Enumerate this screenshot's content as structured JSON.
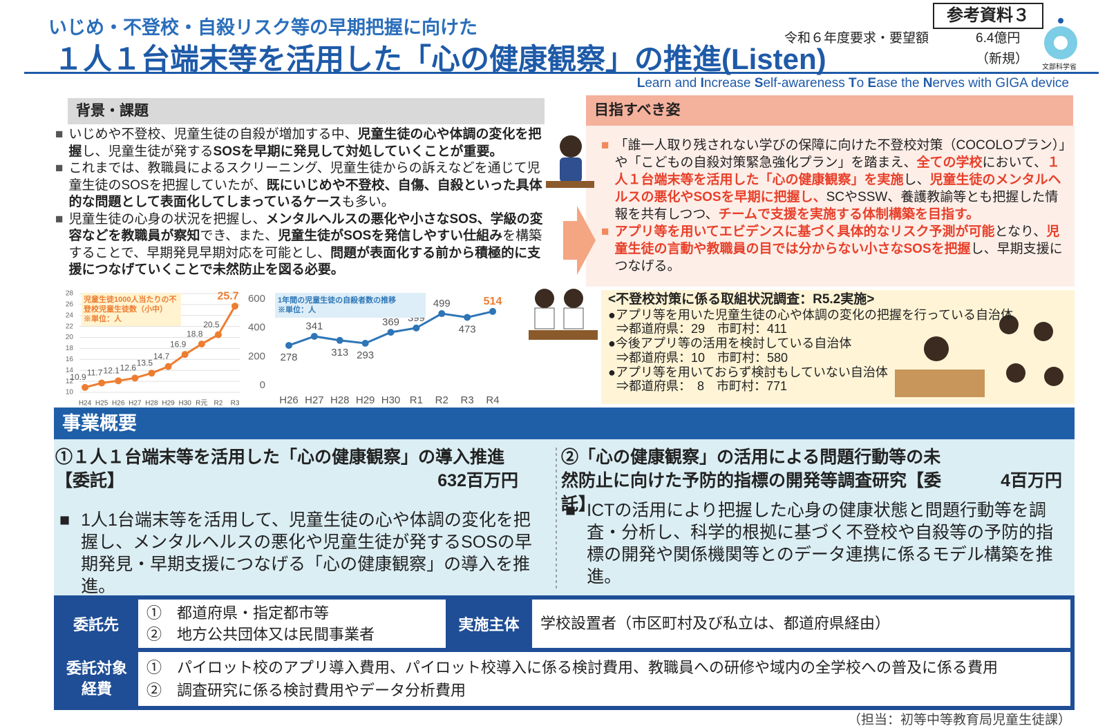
{
  "header": {
    "subtitle": "いじめ・不登校・自殺リスク等の早期把握に向けた",
    "title": "１人１台端末等を活用した「心の健康観察」の推進(Listen)",
    "doc_label": "参考資料３",
    "budget_label": "令和６年度要求・要望額",
    "budget_amount": "6.4億円",
    "budget_note": "（新規）",
    "ministry": "文部科学省",
    "acronym": [
      {
        "text": "L",
        "style": "bold"
      },
      {
        "text": "earn and "
      },
      {
        "text": "I",
        "style": "bold"
      },
      {
        "text": "ncrease "
      },
      {
        "text": "S",
        "style": "bold"
      },
      {
        "text": "elf-awareness "
      },
      {
        "text": "T",
        "style": "bold"
      },
      {
        "text": "o "
      },
      {
        "text": "E",
        "style": "bold"
      },
      {
        "text": "ase the "
      },
      {
        "text": "N",
        "style": "bold"
      },
      {
        "text": "erves with GIGA device"
      }
    ]
  },
  "background": {
    "heading": "背景・課題",
    "bullet_marker": "■",
    "bullets": [
      [
        {
          "text": "いじめや不登校、児童生徒の自殺が増加する中、"
        },
        {
          "text": "児童生徒の心や体調の変化を把握",
          "style": "bold"
        },
        {
          "text": "し、児童生徒が発する"
        },
        {
          "text": "SOSを早期に発見して対処していくことが重要。",
          "style": "bold"
        }
      ],
      [
        {
          "text": "これまでは、教職員によるスクリーニング、児童生徒からの訴えなどを通じて児童生徒のSOSを把握していたが、"
        },
        {
          "text": "既にいじめや不登校、自傷、自殺といった具体的な問題として表面化してしまっているケース",
          "style": "bold"
        },
        {
          "text": "も多い。"
        }
      ],
      [
        {
          "text": "児童生徒の心身の状況を把握し、"
        },
        {
          "text": "メンタルヘルスの悪化や小さなSOS、学級の変容などを教職員が察知",
          "style": "bold"
        },
        {
          "text": "でき、また、"
        },
        {
          "text": "児童生徒がSOSを発信しやすい仕組み",
          "style": "bold"
        },
        {
          "text": "を構築することで、早期発見早期対応を可能とし、"
        },
        {
          "text": "問題が表面化する前から積極的に支援につなげていくことで未然防止を図る必要。",
          "style": "bold"
        }
      ]
    ]
  },
  "chart_left": {
    "type": "line",
    "title": "児童生徒1000人当たりの不登校児童生徒数（小中）",
    "note": "※単位：人",
    "categories": [
      "H24",
      "H25",
      "H26",
      "H27",
      "H28",
      "H29",
      "H30",
      "R元",
      "R2",
      "R3"
    ],
    "values": [
      10.9,
      11.7,
      12.1,
      12.6,
      13.5,
      14.7,
      16.9,
      18.8,
      20.5,
      25.7
    ],
    "color": "#ed7d31",
    "ylim": [
      10,
      28
    ],
    "yticks": [
      10,
      12,
      14,
      16,
      18,
      20,
      22,
      24,
      26,
      28
    ],
    "grid": true
  },
  "chart_right": {
    "type": "line",
    "title": "1年間の児童生徒の自殺者数の推移",
    "note": "※単位：人",
    "categories": [
      "H26",
      "H27",
      "H28",
      "H29",
      "H30",
      "R1",
      "R2",
      "R3",
      "R4"
    ],
    "values": [
      278,
      341,
      313,
      293,
      369,
      399,
      499,
      473,
      514
    ],
    "color": "#2e75b6",
    "ylim": [
      0,
      600
    ],
    "yticks": [
      0,
      200,
      400,
      600
    ],
    "grid": false
  },
  "goal": {
    "heading": "目指すべき姿",
    "bullet_marker": "■",
    "bullets": [
      [
        {
          "text": "「誰一人取り残されない学びの保障に向けた不登校対策（COCOLOプラン）」や「こどもの自殺対策緊急強化プラン」を踏まえ、"
        },
        {
          "text": "全ての学校",
          "style": "red"
        },
        {
          "text": "において、"
        },
        {
          "text": "１人１台端末等を活用した「心の健康観察」を実施",
          "style": "red"
        },
        {
          "text": "し、"
        },
        {
          "text": "児童生徒のメンタルヘルスの悪化やSOSを早期に把握し、",
          "style": "red"
        },
        {
          "text": "SCやSSW、養護教諭等とも把握した情報を共有しつつ、"
        },
        {
          "text": "チームで支援を実施する体制構築を目指す。",
          "style": "red"
        }
      ],
      [
        {
          "text": "アプリ等を用いてエビデンスに基づく具体的なリスク予測が可能",
          "style": "red"
        },
        {
          "text": "となり、"
        },
        {
          "text": "児童生徒の言動や教職員の目では分からない小さなSOSを把握",
          "style": "red"
        },
        {
          "text": "し、早期支援につなげる。"
        }
      ]
    ],
    "survey": {
      "title": "<不登校対策に係る取組状況調査：R5.2実施>",
      "items": [
        {
          "label": "●アプリ等を用いた児童生徒の心や体調の変化の把握を行っている自治体",
          "detail": "⇒都道府県：29　市町村：411"
        },
        {
          "label": "●今後アプリ等の活用を検討している自治体",
          "detail": "⇒都道府県：10　市町村：580"
        },
        {
          "label": "●アプリ等を用いておらず検討もしていない自治体",
          "detail": "⇒都道府県：　8　市町村：771"
        }
      ]
    }
  },
  "overview": {
    "heading": "事業概要",
    "bullet_marker": "■",
    "items": [
      {
        "title": "①１人１台端末等を活用した「心の健康観察」の導入推進【委託】",
        "amount": "632百万円",
        "body": "1人1台端末等を活用して、児童生徒の心や体調の変化を把握し、メンタルヘルスの悪化や児童生徒が発するSOSの早期発見・早期支援につなげる「心の健康観察」の導入を推進。"
      },
      {
        "title": "②「心の健康観察」の活用による問題行動等の未然防止に向けた予防的指標の開発等調査研究【委託】",
        "amount": "4百万円",
        "body": "ICTの活用により把握した心身の健康状態と問題行動等を調査・分析し、科学的根拠に基づく不登校や自殺等の予防的指標の開発や関係機関等とのデータ連携に係るモデル構築を推進。"
      }
    ]
  },
  "table": {
    "contractor_label": "委託先",
    "contractors": [
      "①　都道府県・指定都市等",
      "②　地方公共団体又は民間事業者"
    ],
    "implementer_label": "実施主体",
    "implementer": "学校設置者（市区町村及び私立は、都道府県経由）",
    "cost_label": "委託対象経費",
    "costs": [
      "①　パイロット校のアプリ導入費用、パイロット校導入に係る検討費用、教職員への研修や域内の全学校への普及に係る費用",
      "②　調査研究に係る検討費用やデータ分析費用"
    ]
  },
  "footer": "（担当：初等中等教育局児童生徒課）"
}
